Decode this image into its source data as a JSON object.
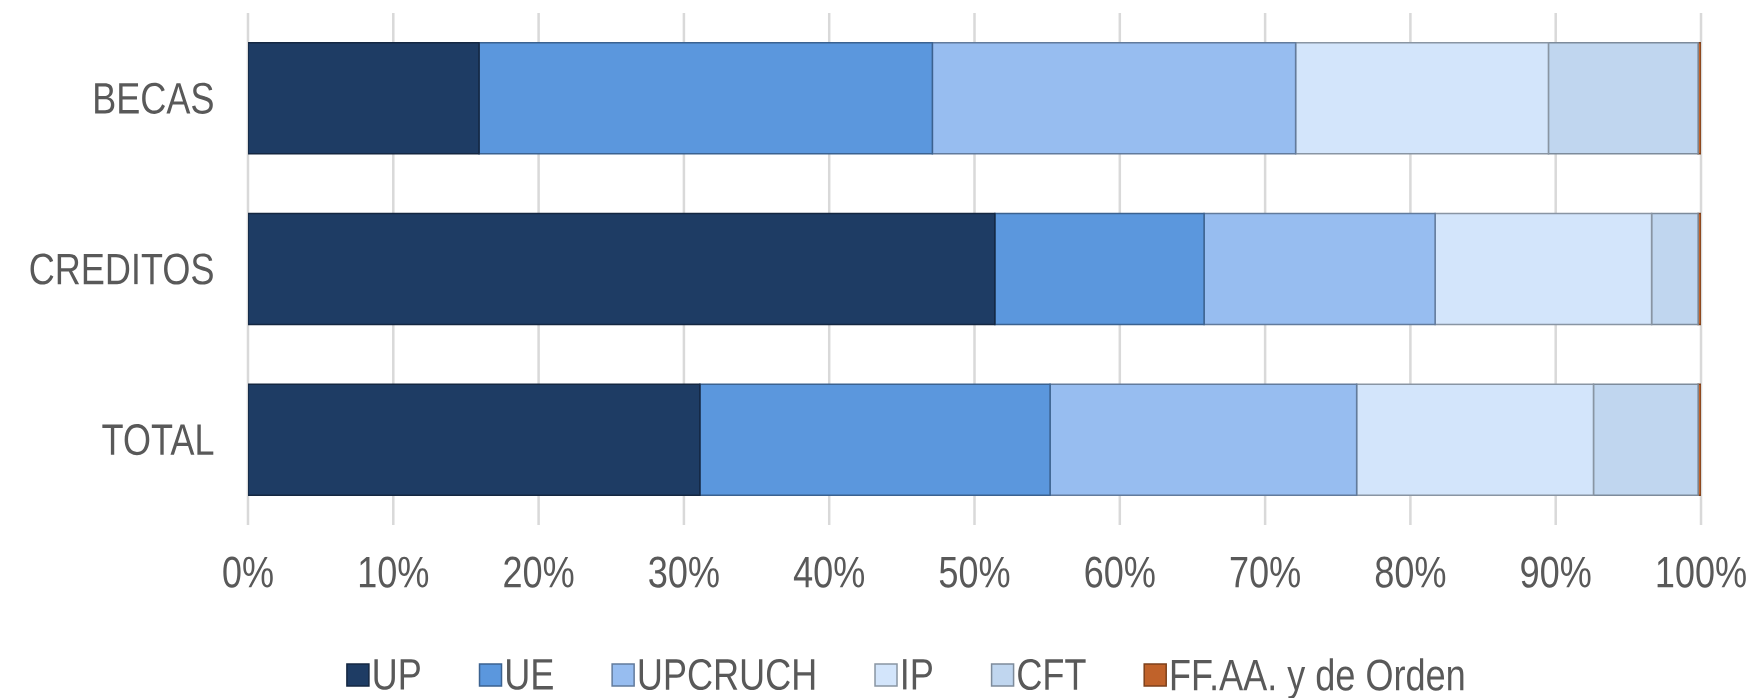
{
  "chart_data": {
    "type": "bar",
    "orientation": "horizontal",
    "stacked": true,
    "categories": [
      "BECAS",
      "CREDITOS",
      "TOTAL"
    ],
    "series": [
      {
        "name": "UP",
        "color": "#1e3c64",
        "values": [
          15.9,
          51.4,
          31.1
        ]
      },
      {
        "name": "UE",
        "color": "#5b97dd",
        "values": [
          31.2,
          14.4,
          24.1
        ]
      },
      {
        "name": "UPCRUCH",
        "color": "#97bdf0",
        "values": [
          25.0,
          15.9,
          21.1
        ]
      },
      {
        "name": "IP",
        "color": "#d3e5fb",
        "values": [
          17.4,
          14.9,
          16.3
        ]
      },
      {
        "name": "CFT",
        "color": "#c0d6ef",
        "values": [
          10.3,
          3.2,
          7.2
        ]
      },
      {
        "name": "FF.AA. y de Orden",
        "color": "#c0622a",
        "values": [
          0.2,
          0.2,
          0.2
        ]
      }
    ],
    "xlim": [
      0,
      100
    ],
    "xticks": [
      {
        "value": 0,
        "label": "0%"
      },
      {
        "value": 10,
        "label": "10%"
      },
      {
        "value": 20,
        "label": "20%"
      },
      {
        "value": 30,
        "label": "30%"
      },
      {
        "value": 40,
        "label": "40%"
      },
      {
        "value": 50,
        "label": "50%"
      },
      {
        "value": 60,
        "label": "60%"
      },
      {
        "value": 70,
        "label": "70%"
      },
      {
        "value": 80,
        "label": "80%"
      },
      {
        "value": 90,
        "label": "90%"
      },
      {
        "value": 100,
        "label": "100%"
      }
    ],
    "grid": "x",
    "legend": "bottom"
  }
}
